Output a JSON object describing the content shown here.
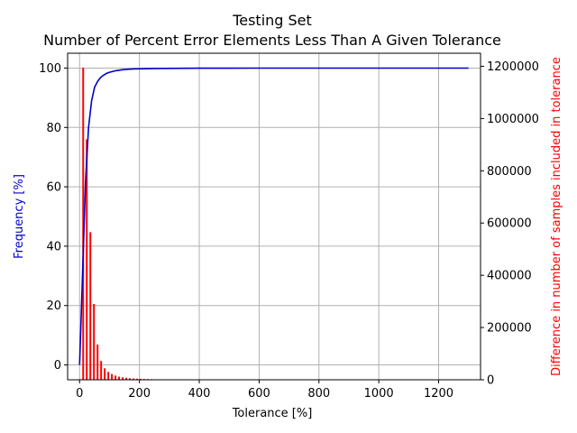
{
  "chart_data": {
    "type": "line",
    "title": "Testing Set",
    "subtitle": "Number of Percent Error Elements Less Than A Given Tolerance",
    "xlabel": "Tolerance [%]",
    "ylabel": "Frequency [%]",
    "y2label": "Difference in number of samples included in tolerance",
    "xlim": [
      -40,
      1340
    ],
    "ylim": [
      -5,
      105
    ],
    "y2lim": [
      0,
      1250000
    ],
    "xticks": [
      "0",
      "200",
      "400",
      "600",
      "800",
      "1000",
      "1200"
    ],
    "yticks": [
      "0",
      "20",
      "40",
      "60",
      "80",
      "100"
    ],
    "y2ticks": [
      "0",
      "200000",
      "400000",
      "600000",
      "800000",
      "1000000",
      "1200000"
    ],
    "grid": true,
    "colors": {
      "line": "#0000cc",
      "bars": "#ff0000",
      "left_axis": "#0000cc",
      "right_axis": "#ff0000"
    },
    "series": [
      {
        "axis": "left",
        "kind": "line",
        "x": [
          0,
          10,
          20,
          30,
          40,
          50,
          60,
          70,
          80,
          90,
          100,
          120,
          140,
          160,
          180,
          200,
          250,
          300,
          400,
          600,
          800,
          1000,
          1200,
          1300
        ],
        "y": [
          0,
          31,
          62,
          80,
          89,
          93.5,
          95.5,
          96.8,
          97.6,
          98.2,
          98.6,
          99.1,
          99.4,
          99.6,
          99.7,
          99.75,
          99.85,
          99.9,
          99.95,
          100,
          100,
          100,
          100,
          100
        ]
      },
      {
        "axis": "right",
        "kind": "bar",
        "x": [
          12,
          24,
          36,
          48,
          60,
          72,
          84,
          96,
          108,
          120,
          132,
          144,
          156,
          168,
          180,
          192,
          204,
          216,
          228,
          240,
          252,
          264,
          276
        ],
        "y": [
          1195000,
          920000,
          565000,
          290000,
          135000,
          72000,
          44000,
          30000,
          22000,
          16000,
          12000,
          9500,
          7500,
          6000,
          5000,
          4200,
          3600,
          3000,
          2600,
          2200,
          1900,
          1600,
          1300
        ]
      }
    ]
  }
}
